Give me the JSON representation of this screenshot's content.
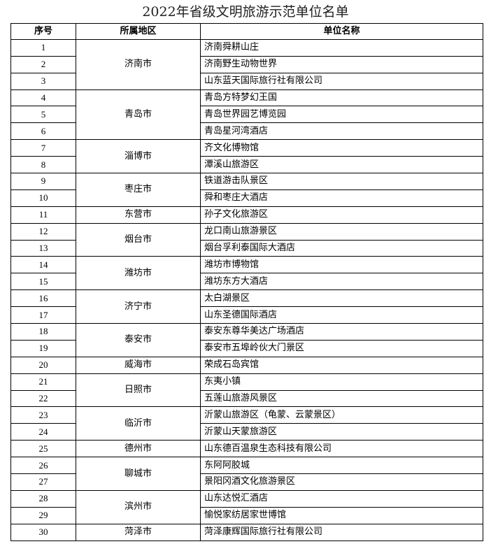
{
  "title": "2022年省级文明旅游示范单位名单",
  "headers": {
    "index": "序号",
    "region": "所属地区",
    "unit": "单位名称"
  },
  "groups": [
    {
      "region": "济南市",
      "units": [
        "济南舜耕山庄",
        "济南野生动物世界",
        "山东蓝天国际旅行社有限公司"
      ]
    },
    {
      "region": "青岛市",
      "units": [
        "青岛方特梦幻王国",
        "青岛世界园艺博览园",
        "青岛星河湾酒店"
      ]
    },
    {
      "region": "淄博市",
      "units": [
        "齐文化博物馆",
        "潭溪山旅游区"
      ]
    },
    {
      "region": "枣庄市",
      "units": [
        "铁道游击队景区",
        "舜和枣庄大酒店"
      ]
    },
    {
      "region": "东营市",
      "units": [
        "孙子文化旅游区"
      ]
    },
    {
      "region": "烟台市",
      "units": [
        "龙口南山旅游景区",
        "烟台孚利泰国际大酒店"
      ]
    },
    {
      "region": "潍坊市",
      "units": [
        "潍坊市博物馆",
        "潍坊东方大酒店"
      ]
    },
    {
      "region": "济宁市",
      "units": [
        "太白湖景区",
        "山东圣德国际酒店"
      ]
    },
    {
      "region": "泰安市",
      "units": [
        "泰安东尊华美达广场酒店",
        "泰安市五埠岭伙大门景区"
      ]
    },
    {
      "region": "威海市",
      "units": [
        "荣成石岛宾馆"
      ]
    },
    {
      "region": "日照市",
      "units": [
        "东夷小镇",
        "五莲山旅游风景区"
      ]
    },
    {
      "region": "临沂市",
      "units": [
        "沂蒙山旅游区（龟蒙、云蒙景区）",
        "沂蒙山天蒙旅游区"
      ]
    },
    {
      "region": "德州市",
      "units": [
        "山东德百温泉生态科技有限公司"
      ]
    },
    {
      "region": "聊城市",
      "units": [
        "东阿阿胶城",
        "景阳冈酒文化旅游景区"
      ]
    },
    {
      "region": "滨州市",
      "units": [
        "山东达悦汇酒店",
        "愉悦家纺居家世博馆"
      ]
    },
    {
      "region": "菏泽市",
      "units": [
        "菏泽康辉国际旅行社有限公司"
      ]
    }
  ]
}
